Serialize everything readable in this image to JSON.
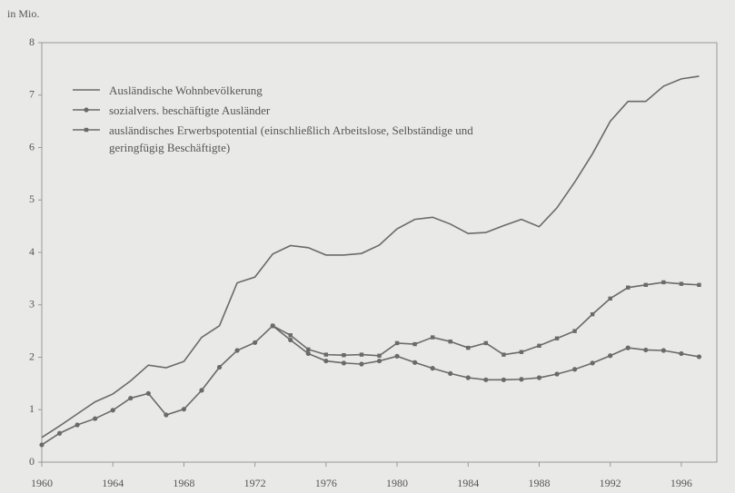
{
  "chart_data": {
    "type": "line",
    "y_label": "in Mio.",
    "x": [
      1960,
      1961,
      1962,
      1963,
      1964,
      1965,
      1966,
      1967,
      1968,
      1969,
      1970,
      1971,
      1972,
      1973,
      1974,
      1975,
      1976,
      1977,
      1978,
      1979,
      1980,
      1981,
      1982,
      1983,
      1984,
      1985,
      1986,
      1987,
      1988,
      1989,
      1990,
      1991,
      1992,
      1993,
      1994,
      1995,
      1996,
      1997
    ],
    "series": [
      {
        "name": "Ausländische Wohnbevölkerung",
        "color": "#6a6a6a",
        "marker": "none",
        "values": [
          0.47,
          0.69,
          0.92,
          1.15,
          1.3,
          1.55,
          1.85,
          1.8,
          1.92,
          2.38,
          2.6,
          3.42,
          3.53,
          3.97,
          4.13,
          4.09,
          3.95,
          3.95,
          3.98,
          4.14,
          4.45,
          4.63,
          4.67,
          4.54,
          4.36,
          4.38,
          4.51,
          4.63,
          4.49,
          4.85,
          5.34,
          5.88,
          6.5,
          6.88,
          6.88,
          7.17,
          7.31,
          7.36
        ]
      },
      {
        "name": "sozialvers. beschäftigte Ausländer",
        "color": "#6a6a6a",
        "marker": "circle",
        "values": [
          0.33,
          0.55,
          0.71,
          0.83,
          0.99,
          1.22,
          1.31,
          0.9,
          1.01,
          1.37,
          1.81,
          2.13,
          2.28,
          2.6,
          2.33,
          2.07,
          1.93,
          1.89,
          1.87,
          1.93,
          2.02,
          1.9,
          1.79,
          1.69,
          1.61,
          1.57,
          1.57,
          1.58,
          1.61,
          1.68,
          1.77,
          1.89,
          2.03,
          2.18,
          2.14,
          2.13,
          2.07,
          2.01
        ]
      },
      {
        "name": "ausländisches Erwerbspotential (einschließlich Arbeitslose, Selbständige und geringfügig Beschäftigte)",
        "color": "#6a6a6a",
        "marker": "square",
        "values": [
          null,
          null,
          null,
          null,
          null,
          null,
          null,
          null,
          null,
          null,
          null,
          null,
          null,
          2.6,
          2.42,
          2.15,
          2.05,
          2.04,
          2.05,
          2.03,
          2.27,
          2.25,
          2.38,
          2.3,
          2.18,
          2.27,
          2.05,
          2.1,
          2.22,
          2.36,
          2.5,
          2.82,
          3.12,
          3.33,
          3.38,
          3.43,
          3.4,
          3.38
        ]
      }
    ],
    "xlim": [
      1960,
      1998
    ],
    "xticks": [
      1960,
      1964,
      1968,
      1972,
      1976,
      1980,
      1984,
      1988,
      1992,
      1996
    ],
    "ylim": [
      0,
      8
    ],
    "yticks": [
      0,
      1,
      2,
      3,
      4,
      5,
      6,
      7,
      8
    ]
  }
}
